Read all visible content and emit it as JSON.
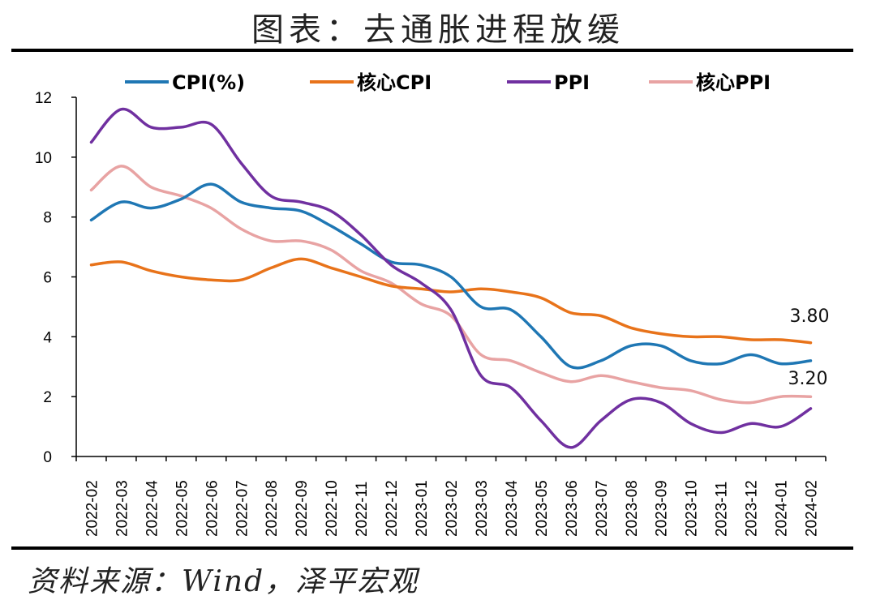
{
  "title": "图表：去通胀进程放缓",
  "source": "资料来源：Wind，泽平宏观",
  "chart_data": {
    "type": "line",
    "x": [
      "2022-02",
      "2022-03",
      "2022-04",
      "2022-05",
      "2022-06",
      "2022-07",
      "2022-08",
      "2022-09",
      "2022-10",
      "2022-11",
      "2022-12",
      "2023-01",
      "2023-02",
      "2023-03",
      "2023-04",
      "2023-05",
      "2023-06",
      "2023-07",
      "2023-08",
      "2023-09",
      "2023-10",
      "2023-11",
      "2023-12",
      "2024-01",
      "2024-02"
    ],
    "ylim": [
      0,
      12
    ],
    "yticks": [
      "0",
      "2",
      "4",
      "6",
      "8",
      "10",
      "12"
    ],
    "series": [
      {
        "name": "CPI(%)",
        "color": "#1f77b4",
        "values": [
          7.9,
          8.5,
          8.3,
          8.6,
          9.1,
          8.5,
          8.3,
          8.2,
          7.7,
          7.1,
          6.5,
          6.4,
          6.0,
          5.0,
          4.9,
          4.0,
          3.0,
          3.2,
          3.7,
          3.7,
          3.2,
          3.1,
          3.4,
          3.1,
          3.2
        ]
      },
      {
        "name": "核心CPI",
        "color": "#e8731a",
        "values": [
          6.4,
          6.5,
          6.2,
          6.0,
          5.9,
          5.9,
          6.3,
          6.6,
          6.3,
          6.0,
          5.7,
          5.6,
          5.5,
          5.6,
          5.5,
          5.3,
          4.8,
          4.7,
          4.3,
          4.1,
          4.0,
          4.0,
          3.9,
          3.9,
          3.8
        ]
      },
      {
        "name": "PPI",
        "color": "#7030a0",
        "values": [
          10.5,
          11.6,
          11.0,
          11.0,
          11.1,
          9.8,
          8.7,
          8.5,
          8.2,
          7.4,
          6.4,
          5.8,
          4.9,
          2.7,
          2.3,
          1.2,
          0.3,
          1.2,
          1.9,
          1.8,
          1.1,
          0.8,
          1.1,
          1.0,
          1.6
        ]
      },
      {
        "name": "核心PPI",
        "color": "#e8a3a3",
        "values": [
          8.9,
          9.7,
          9.0,
          8.7,
          8.3,
          7.6,
          7.2,
          7.2,
          6.9,
          6.2,
          5.8,
          5.1,
          4.7,
          3.4,
          3.2,
          2.8,
          2.5,
          2.7,
          2.5,
          2.3,
          2.2,
          1.9,
          1.8,
          2.0,
          2.0
        ]
      }
    ],
    "annotations": [
      "3.80",
      "3.20"
    ],
    "grid": false,
    "legend": "top"
  }
}
